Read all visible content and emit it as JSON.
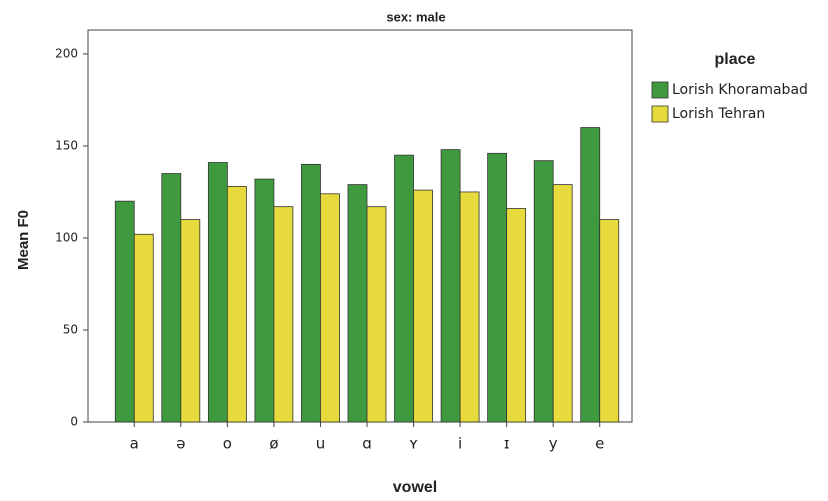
{
  "chart_data": {
    "type": "bar",
    "title": "sex: male",
    "x_label": "vowel",
    "y_label": "Mean F0",
    "legend_title": "place",
    "categories": [
      "a",
      "ə",
      "o",
      "ø",
      "u",
      "ɑ",
      "ʏ",
      "i",
      "ɪ",
      "y",
      "e"
    ],
    "series": [
      {
        "name": "Lorish Khoramabad",
        "color": "#3f9a3f",
        "values": [
          120,
          135,
          141,
          132,
          140,
          129,
          145,
          148,
          146,
          142,
          160
        ]
      },
      {
        "name": "Lorish Tehran",
        "color": "#e6da3c",
        "values": [
          102,
          110,
          128,
          117,
          124,
          117,
          126,
          125,
          116,
          129,
          110
        ]
      }
    ],
    "ylim": [
      0,
      213
    ],
    "yticks": [
      0,
      50,
      100,
      150,
      200
    ]
  }
}
